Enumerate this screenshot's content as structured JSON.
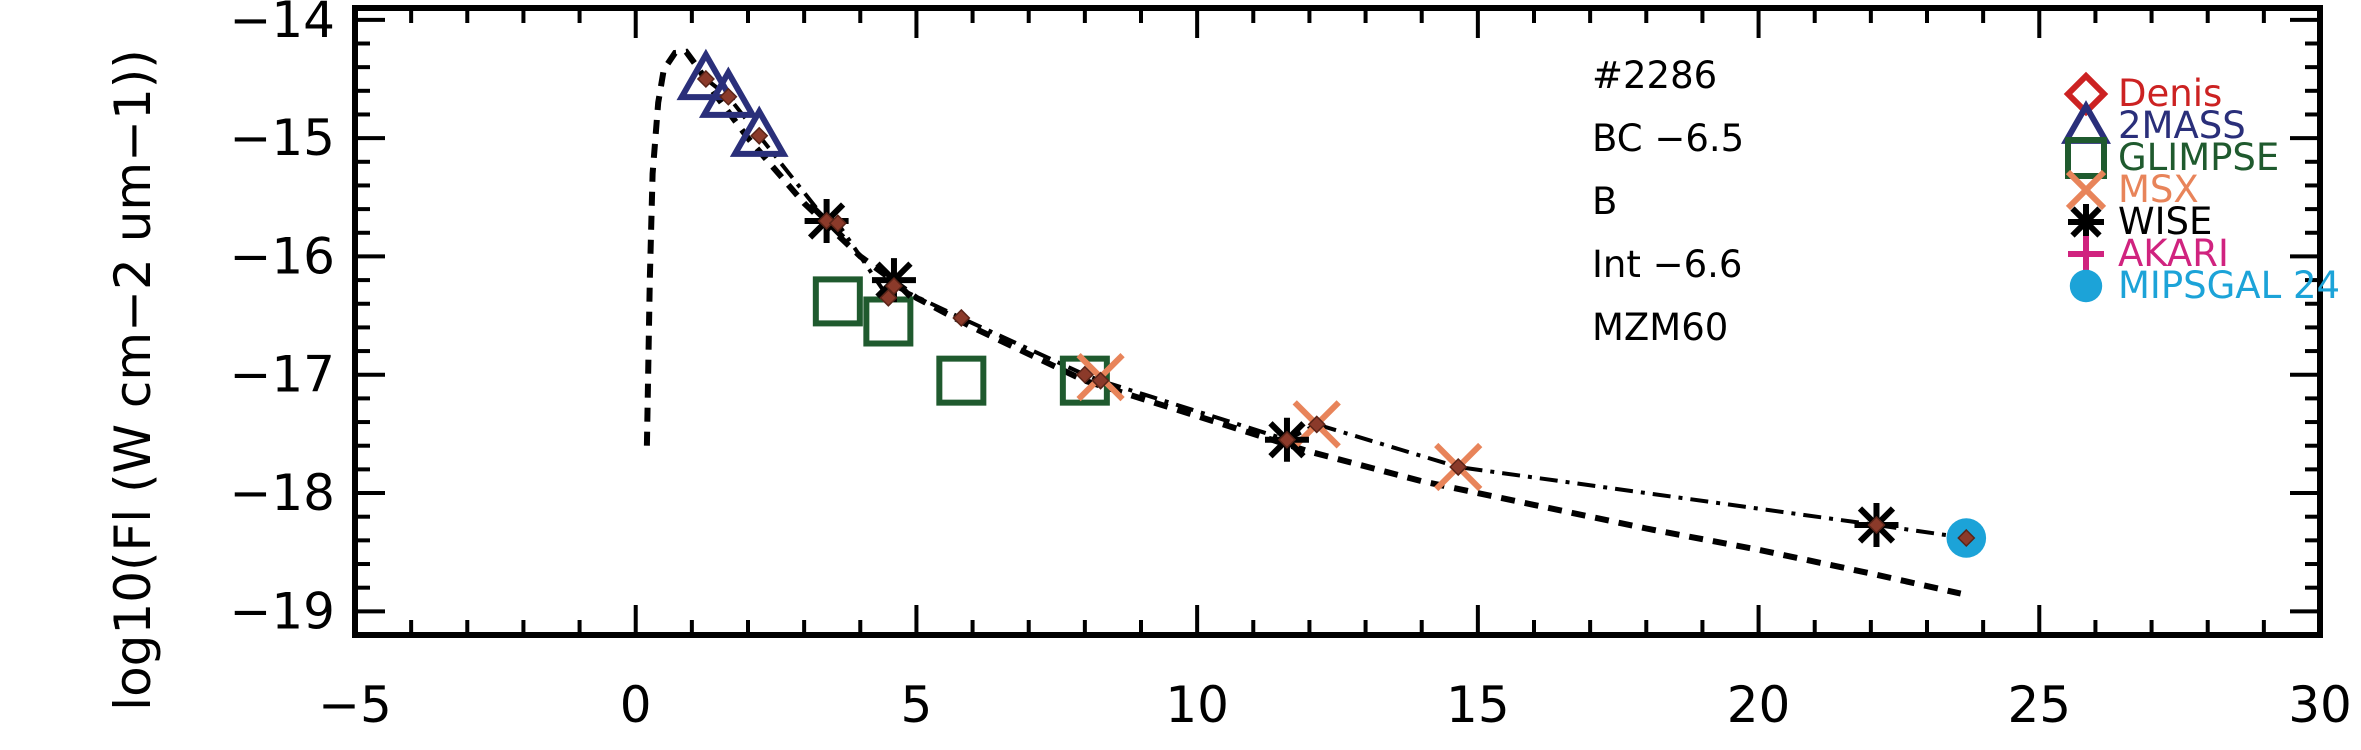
{
  "chart_data": {
    "type": "scatter",
    "ylabel": "log10(Fl (W cm−2 um−1))",
    "xlabel": "",
    "xlim": [
      -5,
      30
    ],
    "ylim": [
      -19.2,
      -13.9
    ],
    "xticks": [
      -5,
      0,
      5,
      10,
      15,
      20,
      25,
      30
    ],
    "xtick_labels": [
      "−5",
      "0",
      "5",
      "10",
      "15",
      "20",
      "25",
      "30"
    ],
    "yticks": [
      -19,
      -18,
      -17,
      -16,
      -15,
      -14
    ],
    "ytick_labels": [
      "−19",
      "−18",
      "−17",
      "−16",
      "−15",
      "−14"
    ],
    "annotations": [
      "#2286",
      "BC −6.5",
      "B",
      "Int −6.6",
      "MZM60"
    ],
    "legend_position": "top-right",
    "series": [
      {
        "name": "Denis",
        "marker": "diamond",
        "color": "#cc2222",
        "points": []
      },
      {
        "name": "2MASS",
        "marker": "triangle",
        "color": "#2a2f7a",
        "points": [
          [
            1.25,
            -14.5
          ],
          [
            1.65,
            -14.65
          ],
          [
            2.2,
            -14.98
          ]
        ]
      },
      {
        "name": "GLIMPSE",
        "marker": "square",
        "color": "#1f5a2e",
        "points": [
          [
            3.6,
            -16.38
          ],
          [
            4.5,
            -16.55
          ],
          [
            5.8,
            -17.05
          ],
          [
            8.0,
            -17.05
          ]
        ]
      },
      {
        "name": "MSX",
        "marker": "x",
        "color": "#e8845a",
        "points": [
          [
            8.28,
            -17.02
          ],
          [
            12.13,
            -17.42
          ],
          [
            14.65,
            -17.78
          ]
        ]
      },
      {
        "name": "WISE",
        "marker": "asterisk",
        "color": "#000000",
        "points": [
          [
            3.4,
            -15.7
          ],
          [
            4.6,
            -16.2
          ],
          [
            11.6,
            -17.55
          ],
          [
            22.1,
            -18.27
          ]
        ]
      },
      {
        "name": "AKARI",
        "marker": "plus",
        "color": "#d0237f",
        "points": []
      },
      {
        "name": "MIPSGAL 24",
        "marker": "circle",
        "color": "#1ca3d8",
        "points": [
          [
            23.7,
            -18.38
          ]
        ]
      }
    ],
    "model_curve": {
      "style": "dashed",
      "x": [
        0.2,
        0.25,
        0.3,
        0.4,
        0.5,
        0.7,
        0.9,
        1.1,
        1.4,
        2.0,
        3.0,
        4.0,
        5.0,
        6.0,
        8.0,
        10.0,
        12.0,
        14.0,
        16.0,
        18.0,
        20.0,
        22.0,
        23.6
      ],
      "y": [
        -17.6,
        -16.2,
        -15.3,
        -14.7,
        -14.42,
        -14.28,
        -14.27,
        -14.4,
        -14.62,
        -15.0,
        -15.55,
        -16.0,
        -16.35,
        -16.6,
        -17.05,
        -17.35,
        -17.65,
        -17.9,
        -18.1,
        -18.3,
        -18.48,
        -18.68,
        -18.85
      ]
    },
    "fit_curve": {
      "style": "dash-dot",
      "x": [
        1.25,
        1.65,
        2.2,
        3.4,
        3.6,
        4.5,
        4.6,
        5.8,
        8.0,
        8.28,
        11.6,
        12.13,
        14.65,
        22.1,
        23.7
      ],
      "y": [
        -14.5,
        -14.65,
        -14.98,
        -15.7,
        -15.72,
        -16.35,
        -16.25,
        -16.52,
        -17.0,
        -17.05,
        -17.55,
        -17.42,
        -17.78,
        -18.27,
        -18.38
      ]
    },
    "fit_markers": {
      "color": "#8b3a2a",
      "x": [
        1.25,
        1.65,
        2.2,
        3.4,
        3.6,
        4.5,
        4.6,
        5.8,
        8.0,
        8.28,
        11.6,
        12.13,
        14.65,
        22.1,
        23.7
      ],
      "y": [
        -14.5,
        -14.65,
        -14.98,
        -15.7,
        -15.72,
        -16.35,
        -16.25,
        -16.52,
        -17.0,
        -17.05,
        -17.55,
        -17.42,
        -17.78,
        -18.27,
        -18.38
      ]
    }
  }
}
